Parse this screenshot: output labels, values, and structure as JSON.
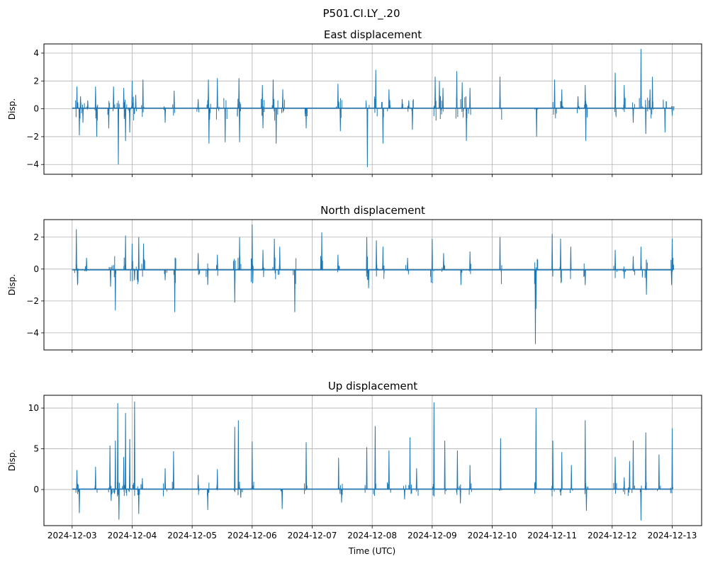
{
  "chart_data": {
    "type": "line",
    "suptitle": "P501.CI.LY_.20",
    "xlabel": "Time (UTC)",
    "x_ticks": [
      "2024-12-03",
      "2024-12-04",
      "2024-12-05",
      "2024-12-06",
      "2024-12-07",
      "2024-12-08",
      "2024-12-09",
      "2024-12-10",
      "2024-12-11",
      "2024-12-12",
      "2024-12-13"
    ],
    "x_range_days": [
      -0.47,
      10.49
    ],
    "line_color": "#1f77b4",
    "grid": true,
    "panels": [
      {
        "title": "East displacement",
        "ylabel": "Disp.",
        "ylim": [
          -4.7,
          4.66
        ],
        "y_ticks": [
          -4,
          -2,
          0,
          2,
          4
        ],
        "baseline": 0.05,
        "spikes_day_value": [
          [
            0.08,
            1.6
          ],
          [
            0.12,
            -1.9
          ],
          [
            0.14,
            0.9
          ],
          [
            0.18,
            -1.0
          ],
          [
            0.26,
            0.6
          ],
          [
            0.39,
            1.6
          ],
          [
            0.41,
            -2.0
          ],
          [
            0.61,
            -1.4
          ],
          [
            0.69,
            1.6
          ],
          [
            0.77,
            -4.0
          ],
          [
            0.86,
            1.5
          ],
          [
            0.89,
            -2.3
          ],
          [
            0.96,
            -1.7
          ],
          [
            1.0,
            2.0
          ],
          [
            1.06,
            1.0
          ],
          [
            1.18,
            2.1
          ],
          [
            1.55,
            -1.0
          ],
          [
            1.7,
            1.3
          ],
          [
            2.1,
            0.7
          ],
          [
            2.27,
            2.1
          ],
          [
            2.28,
            -2.5
          ],
          [
            2.42,
            2.2
          ],
          [
            2.55,
            -2.4
          ],
          [
            2.78,
            2.2
          ],
          [
            2.79,
            -2.4
          ],
          [
            3.17,
            1.7
          ],
          [
            3.18,
            -1.4
          ],
          [
            3.35,
            2.1
          ],
          [
            3.4,
            -2.5
          ],
          [
            3.51,
            1.4
          ],
          [
            3.9,
            -1.4
          ],
          [
            4.43,
            1.8
          ],
          [
            4.47,
            -1.6
          ],
          [
            4.92,
            -4.2
          ],
          [
            5.06,
            2.8
          ],
          [
            5.18,
            -2.5
          ],
          [
            5.28,
            1.4
          ],
          [
            5.5,
            0.7
          ],
          [
            5.61,
            0.6
          ],
          [
            5.67,
            -1.5
          ],
          [
            6.05,
            2.3
          ],
          [
            6.12,
            2.0
          ],
          [
            6.18,
            1.5
          ],
          [
            6.41,
            2.7
          ],
          [
            6.5,
            1.9
          ],
          [
            6.57,
            -2.3
          ],
          [
            6.63,
            1.5
          ],
          [
            7.13,
            2.3
          ],
          [
            7.74,
            -2.0
          ],
          [
            8.04,
            2.1
          ],
          [
            8.16,
            1.4
          ],
          [
            8.43,
            0.9
          ],
          [
            8.55,
            1.7
          ],
          [
            8.56,
            -2.3
          ],
          [
            9.05,
            2.6
          ],
          [
            9.2,
            1.7
          ],
          [
            9.35,
            -1.0
          ],
          [
            9.48,
            4.3
          ],
          [
            9.56,
            -1.8
          ],
          [
            9.63,
            1.4
          ],
          [
            9.67,
            2.3
          ],
          [
            9.88,
            -1.7
          ],
          [
            10.0,
            -0.5
          ]
        ]
      },
      {
        "title": "North displacement",
        "ylabel": "Disp.",
        "ylim": [
          -5.07,
          3.1
        ],
        "y_ticks": [
          -4,
          -2,
          0,
          2
        ],
        "baseline": -0.05,
        "spikes_day_value": [
          [
            0.07,
            2.5
          ],
          [
            0.09,
            -1.0
          ],
          [
            0.24,
            0.7
          ],
          [
            0.64,
            -1.1
          ],
          [
            0.72,
            -2.6
          ],
          [
            0.89,
            2.1
          ],
          [
            1.0,
            1.6
          ],
          [
            1.04,
            -0.7
          ],
          [
            1.11,
            2.0
          ],
          [
            1.19,
            1.6
          ],
          [
            1.55,
            -0.7
          ],
          [
            1.71,
            -2.7
          ],
          [
            2.1,
            1.0
          ],
          [
            2.26,
            -1.0
          ],
          [
            2.42,
            0.9
          ],
          [
            2.71,
            -2.1
          ],
          [
            2.79,
            2.0
          ],
          [
            3.0,
            2.8
          ],
          [
            3.01,
            -0.9
          ],
          [
            3.18,
            1.2
          ],
          [
            3.37,
            1.9
          ],
          [
            3.46,
            1.4
          ],
          [
            3.71,
            -2.7
          ],
          [
            4.16,
            2.3
          ],
          [
            4.43,
            0.9
          ],
          [
            4.91,
            2.0
          ],
          [
            4.94,
            -1.2
          ],
          [
            5.07,
            1.8
          ],
          [
            5.18,
            1.4
          ],
          [
            5.59,
            0.7
          ],
          [
            6.0,
            1.9
          ],
          [
            6.19,
            1.0
          ],
          [
            6.48,
            -1.0
          ],
          [
            6.63,
            1.1
          ],
          [
            7.13,
            2.0
          ],
          [
            7.72,
            -4.7
          ],
          [
            7.73,
            -2.5
          ],
          [
            8.0,
            2.2
          ],
          [
            8.14,
            1.9
          ],
          [
            8.31,
            1.4
          ],
          [
            8.55,
            -1.0
          ],
          [
            9.05,
            1.2
          ],
          [
            9.2,
            -0.6
          ],
          [
            9.35,
            0.8
          ],
          [
            9.48,
            1.4
          ],
          [
            9.57,
            -1.6
          ],
          [
            10.0,
            1.9
          ],
          [
            9.99,
            -1.0
          ]
        ]
      },
      {
        "title": "Up displacement",
        "ylabel": "Disp.",
        "ylim": [
          -4.43,
          11.57
        ],
        "y_ticks": [
          0,
          5,
          10
        ],
        "baseline": 0.05,
        "spikes_day_value": [
          [
            0.08,
            2.4
          ],
          [
            0.12,
            -2.9
          ],
          [
            0.39,
            2.8
          ],
          [
            0.63,
            5.4
          ],
          [
            0.65,
            -1.4
          ],
          [
            0.72,
            6.0
          ],
          [
            0.76,
            10.6
          ],
          [
            0.78,
            -3.7
          ],
          [
            0.86,
            4.0
          ],
          [
            0.89,
            9.4
          ],
          [
            0.96,
            6.2
          ],
          [
            1.04,
            10.8
          ],
          [
            1.11,
            -3.0
          ],
          [
            1.17,
            1.4
          ],
          [
            1.55,
            2.6
          ],
          [
            1.69,
            4.7
          ],
          [
            2.1,
            1.8
          ],
          [
            2.26,
            -2.5
          ],
          [
            2.42,
            2.5
          ],
          [
            2.71,
            7.7
          ],
          [
            2.77,
            8.5
          ],
          [
            2.81,
            -1.0
          ],
          [
            3.0,
            5.9
          ],
          [
            3.5,
            -2.4
          ],
          [
            3.9,
            5.8
          ],
          [
            4.44,
            3.9
          ],
          [
            4.49,
            -1.6
          ],
          [
            4.91,
            5.2
          ],
          [
            5.05,
            7.8
          ],
          [
            5.28,
            4.8
          ],
          [
            5.54,
            -1.2
          ],
          [
            5.63,
            6.4
          ],
          [
            5.74,
            2.6
          ],
          [
            6.03,
            10.7
          ],
          [
            6.21,
            6.0
          ],
          [
            6.42,
            4.8
          ],
          [
            6.47,
            -1.7
          ],
          [
            6.63,
            3.0
          ],
          [
            7.14,
            6.3
          ],
          [
            7.73,
            10.0
          ],
          [
            8.01,
            6.0
          ],
          [
            8.16,
            4.6
          ],
          [
            8.32,
            3.0
          ],
          [
            8.55,
            8.5
          ],
          [
            8.57,
            -2.6
          ],
          [
            9.05,
            4.0
          ],
          [
            9.2,
            1.5
          ],
          [
            9.29,
            3.5
          ],
          [
            9.35,
            6.0
          ],
          [
            9.48,
            -3.8
          ],
          [
            9.56,
            7.0
          ],
          [
            9.78,
            4.3
          ],
          [
            10.0,
            7.5
          ]
        ]
      }
    ]
  }
}
